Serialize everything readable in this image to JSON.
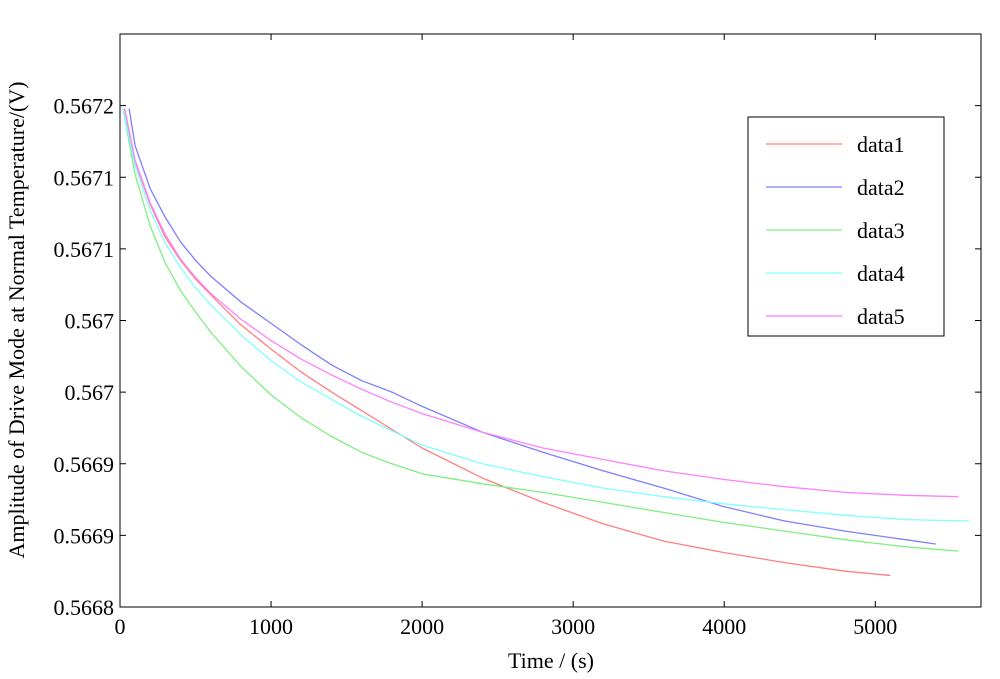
{
  "chart_data": {
    "type": "line",
    "title": "",
    "xlabel": "Time / (s)",
    "ylabel": "Amplitude of Drive Mode at Normal Temperature/(V)",
    "xlim": [
      0,
      5700
    ],
    "ylim": [
      0.5668,
      0.5672
    ],
    "x_ticks": [
      {
        "value": 0,
        "label": "0"
      },
      {
        "value": 1000,
        "label": "1000"
      },
      {
        "value": 2000,
        "label": "2000"
      },
      {
        "value": 3000,
        "label": "3000"
      },
      {
        "value": 4000,
        "label": "4000"
      },
      {
        "value": 5000,
        "label": "5000"
      }
    ],
    "y_ticks": [
      {
        "value": 0.5668,
        "label": "0.5668"
      },
      {
        "value": 0.56685,
        "label": "0.5669"
      },
      {
        "value": 0.5669,
        "label": "0.5669"
      },
      {
        "value": 0.56695,
        "label": "0.567"
      },
      {
        "value": 0.567,
        "label": "0.567"
      },
      {
        "value": 0.56705,
        "label": "0.5671"
      },
      {
        "value": 0.5671,
        "label": "0.5671"
      },
      {
        "value": 0.56715,
        "label": "0.5672"
      }
    ],
    "grid": false,
    "legend_position": "top-right",
    "series": [
      {
        "name": "data1",
        "color": "#ff7f7f",
        "x": [
          30,
          100,
          200,
          300,
          400,
          500,
          600,
          800,
          1000,
          1200,
          1400,
          1600,
          1800,
          2000,
          2400,
          2800,
          3200,
          3600,
          4000,
          4400,
          4800,
          5100
        ],
        "y": [
          0.567148,
          0.567111,
          0.567081,
          0.567058,
          0.567042,
          0.567029,
          0.567018,
          0.566997,
          0.56698,
          0.566964,
          0.56695,
          0.566937,
          0.566924,
          0.566911,
          0.56689,
          0.566873,
          0.566858,
          0.566846,
          0.566838,
          0.566831,
          0.566825,
          0.566822
        ]
      },
      {
        "name": "data2",
        "color": "#7f7fff",
        "x": [
          60,
          100,
          200,
          300,
          400,
          500,
          600,
          800,
          1000,
          1200,
          1400,
          1600,
          1800,
          2000,
          2400,
          2800,
          3200,
          3600,
          4000,
          4400,
          4800,
          5200,
          5400
        ],
        "y": [
          0.567148,
          0.567122,
          0.567092,
          0.567072,
          0.567055,
          0.567042,
          0.567031,
          0.567013,
          0.566998,
          0.566983,
          0.566969,
          0.566958,
          0.56695,
          0.56694,
          0.566922,
          0.566908,
          0.566895,
          0.566883,
          0.56687,
          0.56686,
          0.566853,
          0.566847,
          0.566844
        ]
      },
      {
        "name": "data3",
        "color": "#7fef7f",
        "x": [
          20,
          100,
          200,
          300,
          400,
          500,
          600,
          800,
          1000,
          1200,
          1400,
          1600,
          1800,
          2000,
          2400,
          2800,
          3200,
          3600,
          4000,
          4400,
          4800,
          5200,
          5550
        ],
        "y": [
          0.567148,
          0.567102,
          0.567066,
          0.56704,
          0.567021,
          0.567006,
          0.566992,
          0.566968,
          0.566948,
          0.566932,
          0.566919,
          0.566908,
          0.5669,
          0.566893,
          0.566886,
          0.56688,
          0.566873,
          0.566866,
          0.566859,
          0.566853,
          0.566847,
          0.566842,
          0.566839
        ]
      },
      {
        "name": "data4",
        "color": "#7fffff",
        "x": [
          20,
          100,
          200,
          300,
          400,
          500,
          600,
          800,
          1000,
          1200,
          1400,
          1600,
          1800,
          2000,
          2400,
          2800,
          3200,
          3600,
          4000,
          4400,
          4800,
          5200,
          5620
        ],
        "y": [
          0.567148,
          0.567108,
          0.567077,
          0.567054,
          0.567037,
          0.567023,
          0.567011,
          0.56699,
          0.566972,
          0.566957,
          0.566945,
          0.566933,
          0.566923,
          0.566913,
          0.5669,
          0.566891,
          0.566883,
          0.566877,
          0.566872,
          0.566868,
          0.566864,
          0.566861,
          0.56686
        ]
      },
      {
        "name": "data5",
        "color": "#ff7fff",
        "x": [
          30,
          100,
          200,
          300,
          400,
          500,
          600,
          800,
          1000,
          1200,
          1400,
          1600,
          1800,
          2000,
          2400,
          2800,
          3200,
          3600,
          4000,
          4400,
          4800,
          5200,
          5550
        ],
        "y": [
          0.567148,
          0.567112,
          0.567082,
          0.56706,
          0.567043,
          0.56703,
          0.567019,
          0.567001,
          0.566986,
          0.566973,
          0.566962,
          0.566952,
          0.566943,
          0.566935,
          0.566922,
          0.566911,
          0.566903,
          0.566895,
          0.566889,
          0.566884,
          0.56688,
          0.566878,
          0.566877
        ]
      }
    ]
  }
}
